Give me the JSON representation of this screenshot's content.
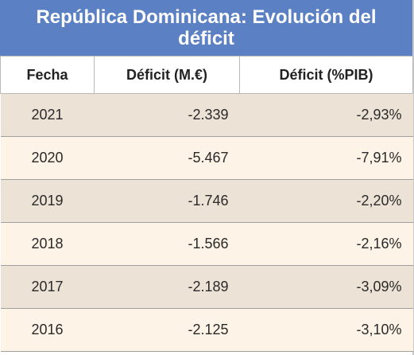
{
  "chart_data": {
    "type": "table",
    "title": "República Dominicana: Evolución del déficit",
    "columns": [
      "Fecha",
      "Déficit (M.€)",
      "Déficit (%PIB)"
    ],
    "rows": [
      [
        "2021",
        "-2.339",
        "-2,93%"
      ],
      [
        "2020",
        "-5.467",
        "-7,91%"
      ],
      [
        "2019",
        "-1.746",
        "-2,20%"
      ],
      [
        "2018",
        "-1.566",
        "-2,16%"
      ],
      [
        "2017",
        "-2.189",
        "-3,09%"
      ],
      [
        "2016",
        "-2.125",
        "-3,10%"
      ]
    ]
  },
  "colors": {
    "header_bg": "#5b80c3",
    "row_odd": "#ece3d6",
    "row_even": "#fdf3e6"
  }
}
